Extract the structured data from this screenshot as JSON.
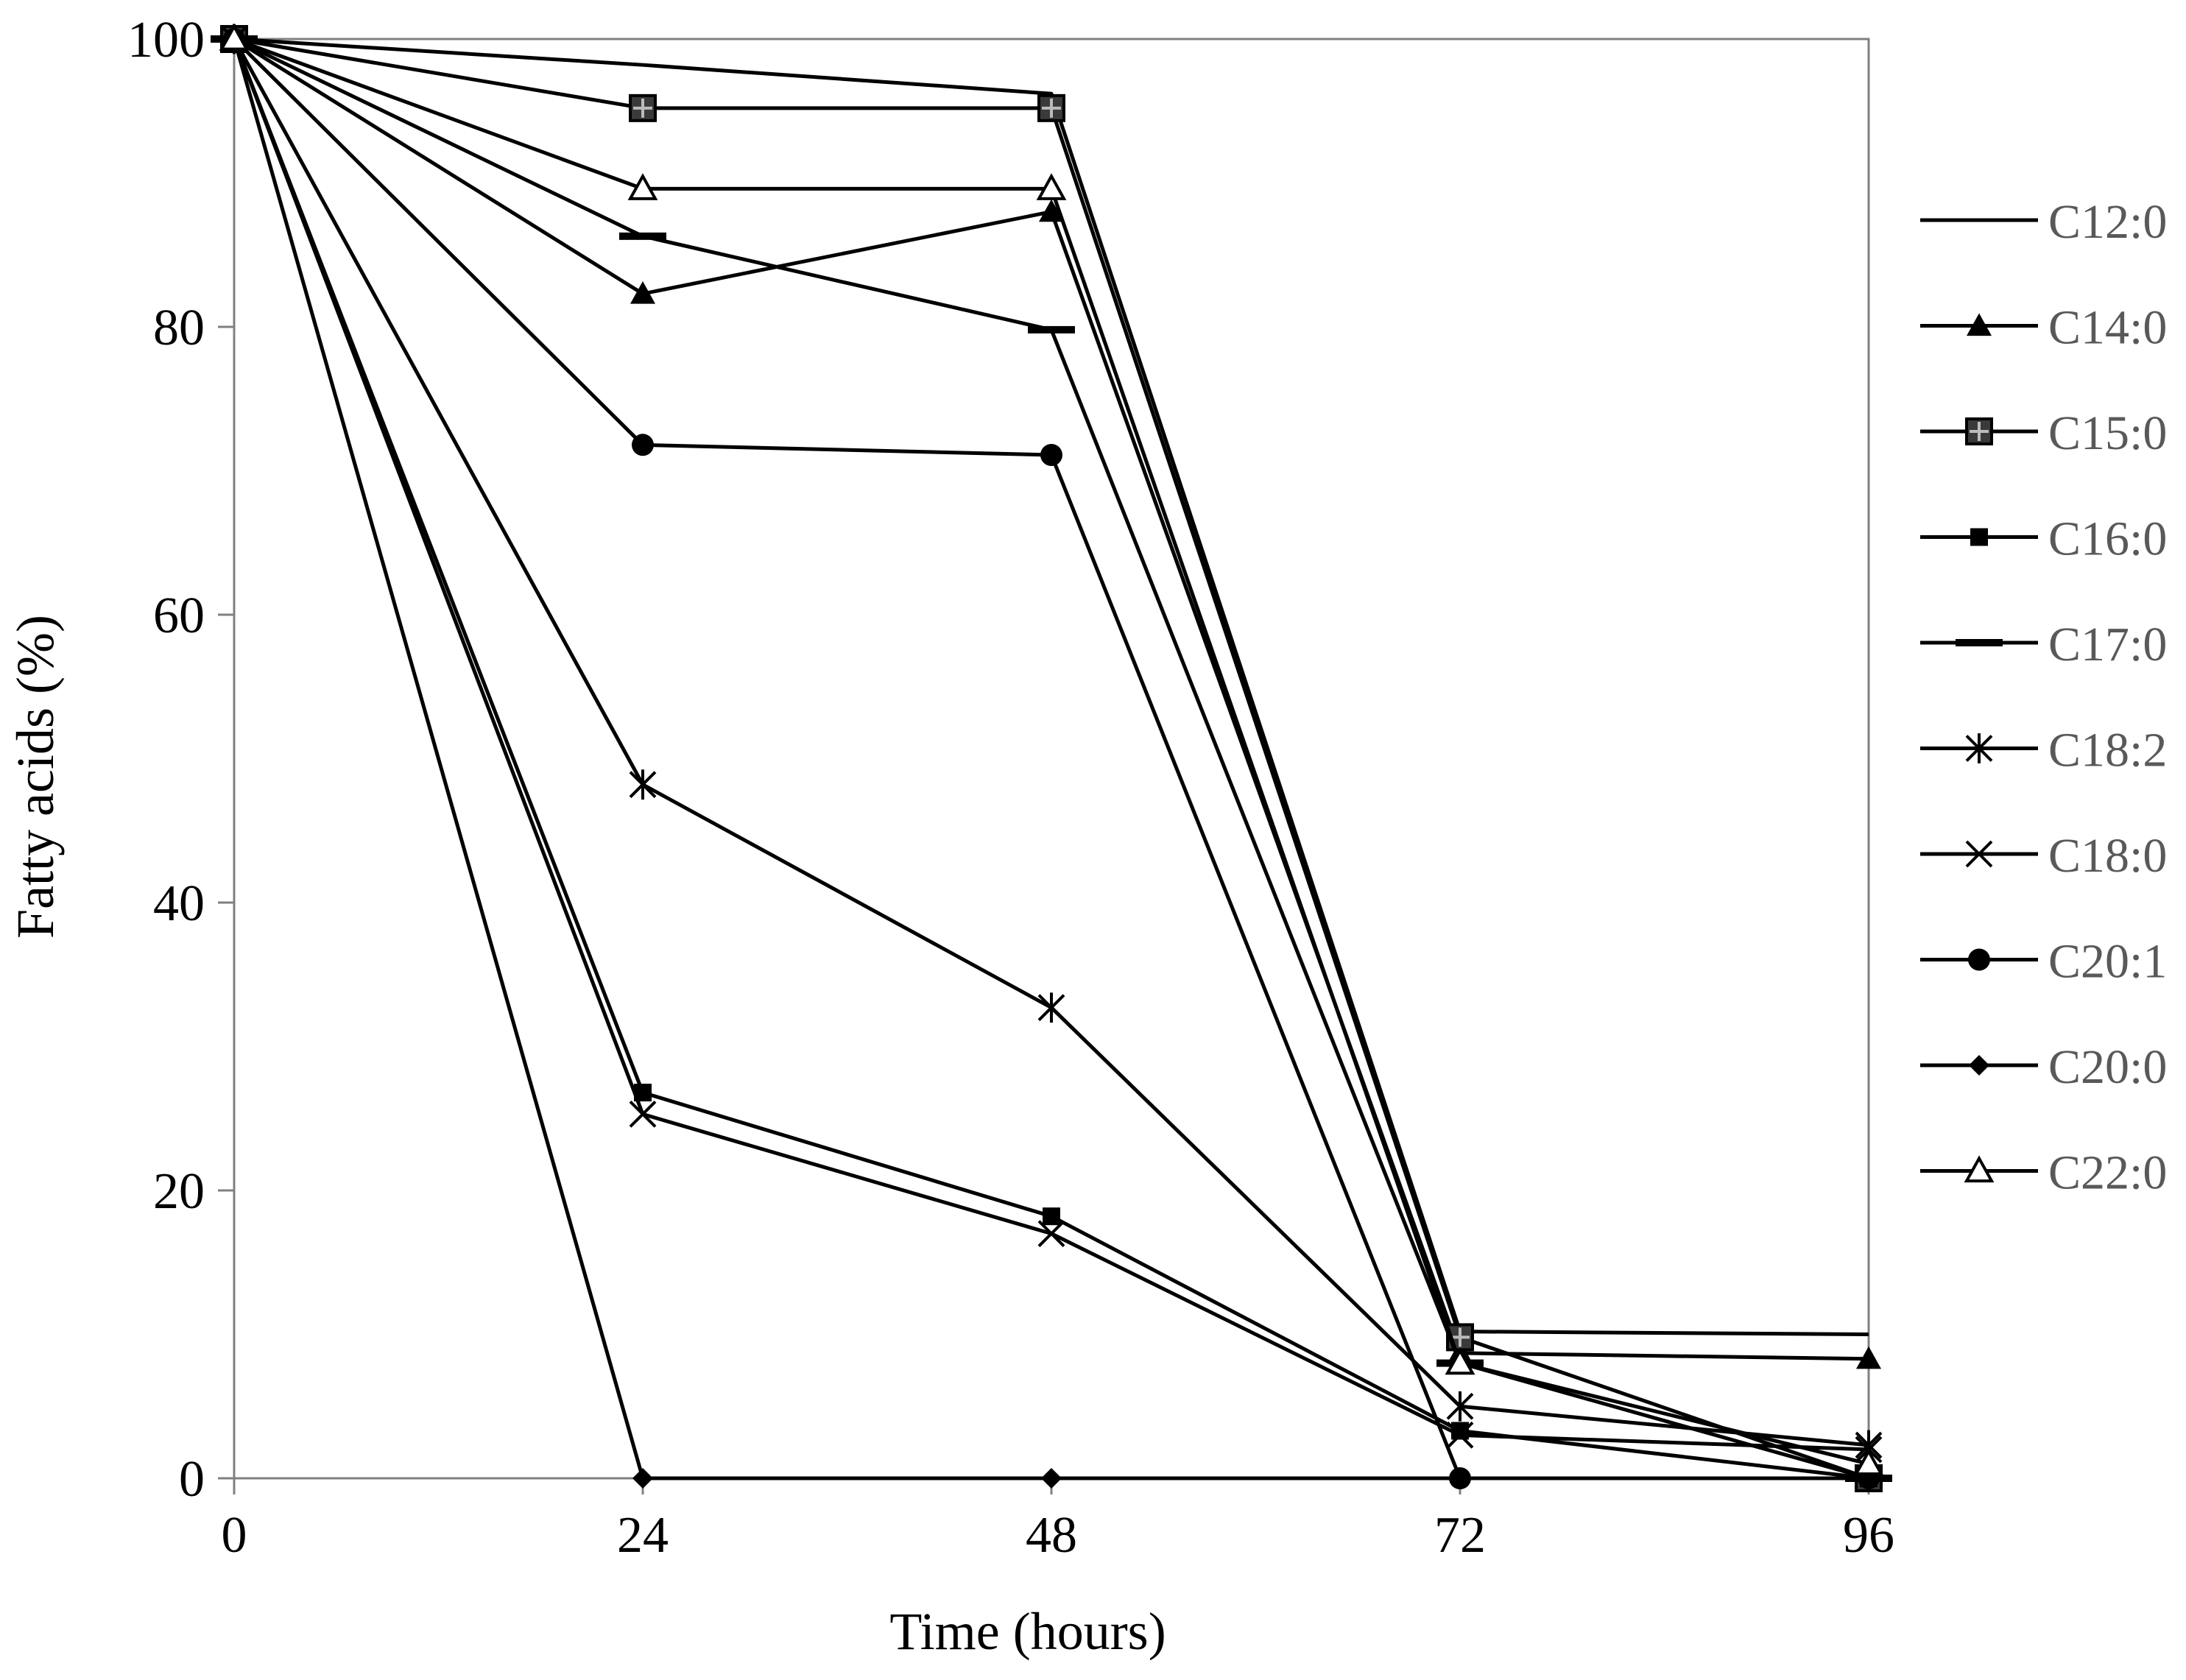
{
  "chart_data": {
    "type": "line",
    "title": "",
    "xlabel": "Time (hours)",
    "ylabel": "Fatty acids (%)",
    "x": [
      0,
      24,
      48,
      72,
      96
    ],
    "x_ticks": [
      "0",
      "24",
      "48",
      "72",
      "96"
    ],
    "y_ticks": [
      "0",
      "20",
      "40",
      "60",
      "80",
      "100"
    ],
    "xlim": [
      0,
      96
    ],
    "ylim": [
      0,
      100
    ],
    "grid": false,
    "legend_position": "right",
    "series": [
      {
        "name": "C12:0",
        "marker": "none",
        "values": [
          100,
          98.2,
          96.2,
          10.2,
          10.0
        ]
      },
      {
        "name": "C14:0",
        "marker": "triangle-filled",
        "values": [
          100,
          82.3,
          88.0,
          8.7,
          8.3
        ]
      },
      {
        "name": "C15:0",
        "marker": "square-cross",
        "values": [
          100,
          95.2,
          95.2,
          9.8,
          0
        ]
      },
      {
        "name": "C16:0",
        "marker": "square-small",
        "values": [
          100,
          26.8,
          18.2,
          3.3,
          0
        ]
      },
      {
        "name": "C17:0",
        "marker": "dash",
        "values": [
          100,
          86.3,
          79.8,
          8.0,
          0
        ]
      },
      {
        "name": "C18:2",
        "marker": "star",
        "values": [
          100,
          48.2,
          32.7,
          5.0,
          2.3
        ]
      },
      {
        "name": "C18:0",
        "marker": "x",
        "values": [
          100,
          25.3,
          17.0,
          3.0,
          2.0
        ]
      },
      {
        "name": "C20:1",
        "marker": "circle-filled",
        "values": [
          100,
          71.8,
          71.1,
          0,
          0
        ]
      },
      {
        "name": "C20:0",
        "marker": "diamond-filled",
        "values": [
          100,
          0,
          0,
          0,
          0
        ]
      },
      {
        "name": "C22:0",
        "marker": "triangle-open",
        "values": [
          100,
          89.6,
          89.6,
          8.0,
          1.0
        ]
      }
    ]
  }
}
